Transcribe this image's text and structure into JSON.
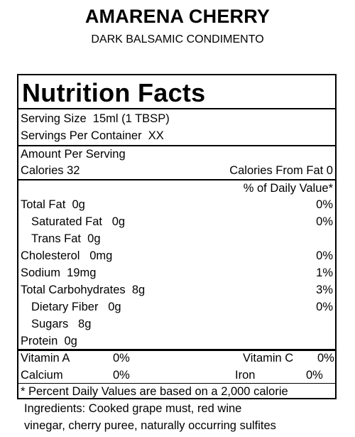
{
  "product": {
    "name": "AMARENA CHERRY",
    "subtitle": "DARK BALSAMIC CONDIMENTO"
  },
  "label": {
    "title": "Nutrition Facts",
    "serving_size": "Serving Size  15ml (1 TBSP)",
    "servings_per_container": "Servings Per Container  XX",
    "amount_per_serving": "Amount Per Serving",
    "calories": "Calories 32",
    "calories_from_fat": "Calories From Fat 0",
    "dv_header": "% of Daily Value*",
    "nutrients": [
      {
        "name": "Total Fat  0g",
        "dv": "0%"
      },
      {
        "name": "Saturated Fat   0g",
        "dv": "0%"
      },
      {
        "name": "Trans Fat  0g",
        "dv": ""
      },
      {
        "name": "Cholesterol   0mg",
        "dv": "0%"
      },
      {
        "name": "Sodium  19mg",
        "dv": "1%"
      },
      {
        "name": "Total Carbohydrates  8g",
        "dv": "3%"
      },
      {
        "name": "Dietary Fiber   0g",
        "dv": "0%"
      },
      {
        "name": "Sugars   8g",
        "dv": ""
      },
      {
        "name": "Protein  0g",
        "dv": ""
      }
    ],
    "vitamins": {
      "vitamin_a": "Vitamin A",
      "vitamin_a_dv": "0%",
      "vitamin_c": "Vitamin C",
      "vitamin_c_dv": "0%",
      "calcium": "Calcium",
      "calcium_dv": "0%",
      "iron": "Iron",
      "iron_dv": "0%"
    },
    "footnote": "* Percent Daily Values are based on a 2,000 calorie"
  },
  "ingredients": {
    "line1": "Ingredients:  Cooked grape must, red wine",
    "line2": "vinegar, cherry puree, naturally occurring sulfites"
  }
}
